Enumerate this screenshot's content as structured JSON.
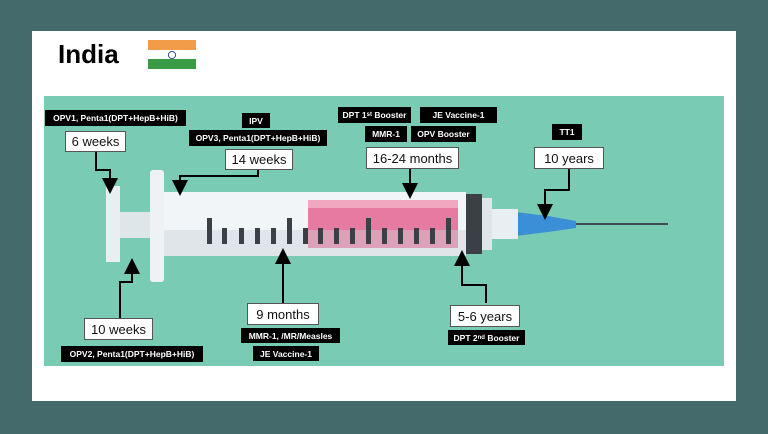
{
  "title": "India",
  "flag": {
    "colors": [
      "#f29c4a",
      "#ffffff",
      "#3a9b45"
    ],
    "chakra_color": "#1b3f8f",
    "name": "india-flag"
  },
  "colors": {
    "panel": "#79cbb3",
    "frame": "#456a6b",
    "fill": "#e77aa0",
    "needle": "#3a8fd6"
  },
  "milestones": [
    {
      "age": "6 weeks",
      "vaccines": [
        "OPV1, Penta1(DPT+HepB+HiB)"
      ]
    },
    {
      "age": "14 weeks",
      "vaccines": [
        "IPV",
        "OPV3, Penta1(DPT+HepB+HiB)"
      ]
    },
    {
      "age": "16-24 months",
      "vaccines": [
        "DPT 1st Booster",
        "JE Vaccine-1",
        "MMR-1",
        "OPV Booster"
      ]
    },
    {
      "age": "10 years",
      "vaccines": [
        "TT1"
      ]
    },
    {
      "age": "10 weeks",
      "vaccines": [
        "OPV2, Penta1(DPT+HepB+HiB)"
      ]
    },
    {
      "age": "9 months",
      "vaccines": [
        "MMR-1, /MR/Measles",
        "JE Vaccine-1"
      ]
    },
    {
      "age": "5-6 years",
      "vaccines": [
        "DPT 2nd Booster"
      ]
    }
  ]
}
